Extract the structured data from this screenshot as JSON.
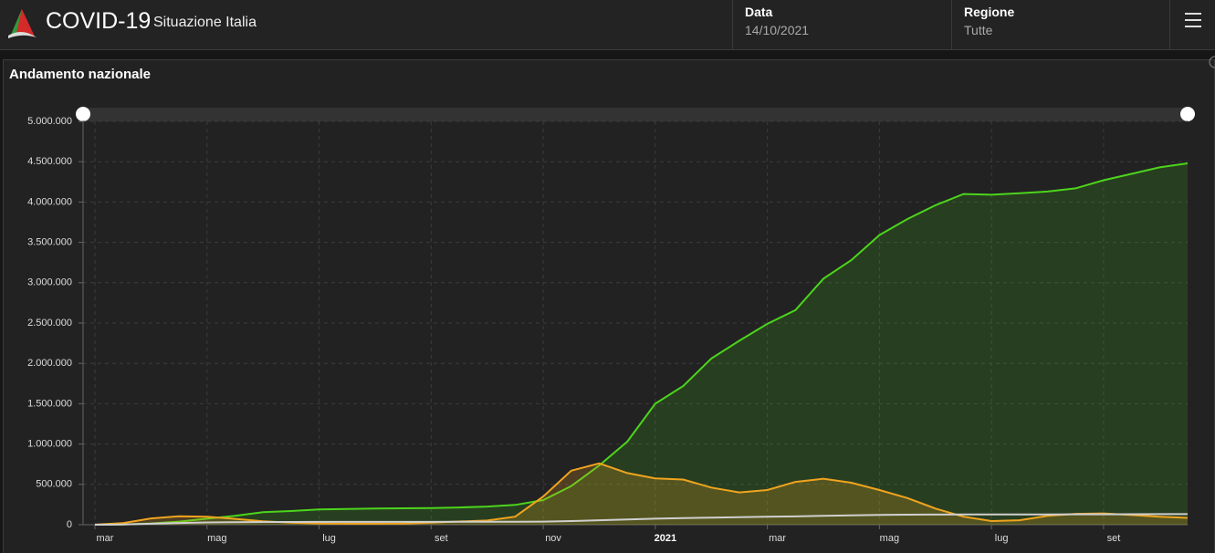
{
  "header": {
    "title": "COVID-19",
    "subtitle": "Situazione Italia",
    "filters": [
      {
        "label": "Data",
        "value": "14/10/2021"
      },
      {
        "label": "Regione",
        "value": "Tutte"
      }
    ]
  },
  "panel_title": "Andamento nazionale",
  "chart_data": {
    "type": "line",
    "area": true,
    "grid": true,
    "categories": [
      "mar",
      null,
      null,
      null,
      "mag",
      null,
      null,
      null,
      "lug",
      null,
      null,
      null,
      "set",
      null,
      null,
      null,
      "nov",
      null,
      null,
      null,
      "2021",
      null,
      null,
      null,
      "mar",
      null,
      null,
      null,
      "mag",
      null,
      null,
      null,
      "lug",
      null,
      null,
      null,
      "set",
      null,
      null,
      null
    ],
    "series": [
      {
        "color": "#4cd41c",
        "values": [
          0,
          2000,
          16000,
          38000,
          75000,
          110000,
          155000,
          170000,
          190000,
          196000,
          200000,
          204000,
          207000,
          214000,
          225000,
          245000,
          305000,
          480000,
          735000,
          1030000,
          1500000,
          1720000,
          2060000,
          2280000,
          2490000,
          2660000,
          3050000,
          3280000,
          3590000,
          3790000,
          3960000,
          4100000,
          4090000,
          4110000,
          4130000,
          4170000,
          4270000,
          4350000,
          4430000,
          4480000
        ]
      },
      {
        "color": "#f0a41e",
        "values": [
          1000,
          20000,
          78000,
          105000,
          100000,
          72000,
          42000,
          26000,
          16000,
          13000,
          12500,
          15000,
          26000,
          40000,
          52000,
          100000,
          350000,
          670000,
          760000,
          640000,
          575000,
          560000,
          460000,
          400000,
          430000,
          530000,
          570000,
          520000,
          430000,
          330000,
          200000,
          100000,
          45000,
          55000,
          110000,
          135000,
          140000,
          120000,
          100000,
          85000
        ]
      },
      {
        "color": "#cfcfcf",
        "values": [
          30,
          1800,
          13000,
          21600,
          28000,
          31600,
          33400,
          34300,
          34800,
          35100,
          35200,
          35400,
          35500,
          35700,
          36000,
          36400,
          38600,
          45200,
          55600,
          65800,
          74200,
          81300,
          88500,
          93600,
          97900,
          102500,
          110000,
          116000,
          121000,
          124000,
          126000,
          127000,
          127600,
          127900,
          128100,
          128500,
          129200,
          130000,
          130700,
          131300
        ]
      }
    ],
    "ylim": [
      0,
      5000000
    ],
    "yticks": [
      0,
      {
        "value": 500000,
        "label": "500.000"
      },
      {
        "value": 1000000,
        "label": "1.000.000"
      },
      {
        "value": 1500000,
        "label": "1.500.000"
      },
      {
        "value": 2000000,
        "label": "2.000.000"
      },
      {
        "value": 2500000,
        "label": "2.500.000"
      },
      {
        "value": 3000000,
        "label": "3.000.000"
      },
      {
        "value": 3500000,
        "label": "3.500.000"
      },
      {
        "value": 4000000,
        "label": "4.000.000"
      },
      {
        "value": 4500000,
        "label": "4.500.000"
      },
      {
        "value": 5000000,
        "label": "5.000.000"
      }
    ]
  }
}
